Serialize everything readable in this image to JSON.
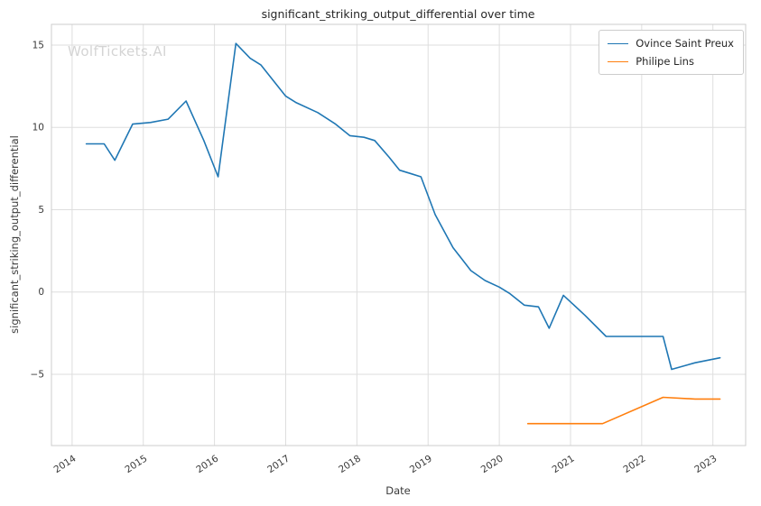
{
  "watermark": "WolfTickets.AI",
  "chart_data": {
    "type": "line",
    "title": "significant_striking_output_differential over time",
    "xlabel": "Date",
    "ylabel": "significant_striking_output_differential",
    "xlim": [
      2013.71,
      2023.46
    ],
    "ylim": [
      -9.33,
      16.26
    ],
    "x_ticks": [
      2014,
      2015,
      2016,
      2017,
      2018,
      2019,
      2020,
      2021,
      2022,
      2023
    ],
    "x_tick_labels": [
      "2014",
      "2015",
      "2016",
      "2017",
      "2018",
      "2019",
      "2020",
      "2021",
      "2022",
      "2023"
    ],
    "y_ticks": [
      15,
      10,
      5,
      0,
      -5
    ],
    "y_tick_labels": [
      "15",
      "10",
      "5",
      "0",
      "−5"
    ],
    "grid": true,
    "legend_position": "upper right",
    "series": [
      {
        "name": "Ovince Saint Preux",
        "color": "#1f77b4",
        "x": [
          2014.2,
          2014.45,
          2014.6,
          2014.85,
          2015.1,
          2015.35,
          2015.6,
          2015.85,
          2016.05,
          2016.3,
          2016.5,
          2016.65,
          2017.0,
          2017.15,
          2017.45,
          2017.7,
          2017.9,
          2018.1,
          2018.25,
          2018.45,
          2018.6,
          2018.75,
          2018.9,
          2019.1,
          2019.35,
          2019.6,
          2019.8,
          2020.0,
          2020.15,
          2020.35,
          2020.55,
          2020.7,
          2020.9,
          2021.2,
          2021.5,
          2021.8,
          2022.1,
          2022.3,
          2022.42,
          2022.75,
          2023.1
        ],
        "y": [
          9.0,
          9.0,
          8.0,
          10.2,
          10.3,
          10.5,
          11.6,
          9.2,
          7.0,
          15.1,
          14.2,
          13.8,
          11.9,
          11.5,
          10.9,
          10.2,
          9.5,
          9.4,
          9.2,
          8.2,
          7.4,
          7.2,
          7.0,
          4.7,
          2.7,
          1.3,
          0.7,
          0.3,
          -0.1,
          -0.8,
          -0.9,
          -2.2,
          -0.2,
          -1.4,
          -2.7,
          -2.7,
          -2.7,
          -2.7,
          -4.7,
          -4.3,
          -4.0
        ]
      },
      {
        "name": "Philipe Lins",
        "color": "#ff7f0e",
        "x": [
          2020.4,
          2020.75,
          2021.45,
          2022.3,
          2022.75,
          2023.1
        ],
        "y": [
          -8.0,
          -8.0,
          -8.0,
          -6.4,
          -6.5,
          -6.5
        ]
      }
    ]
  }
}
